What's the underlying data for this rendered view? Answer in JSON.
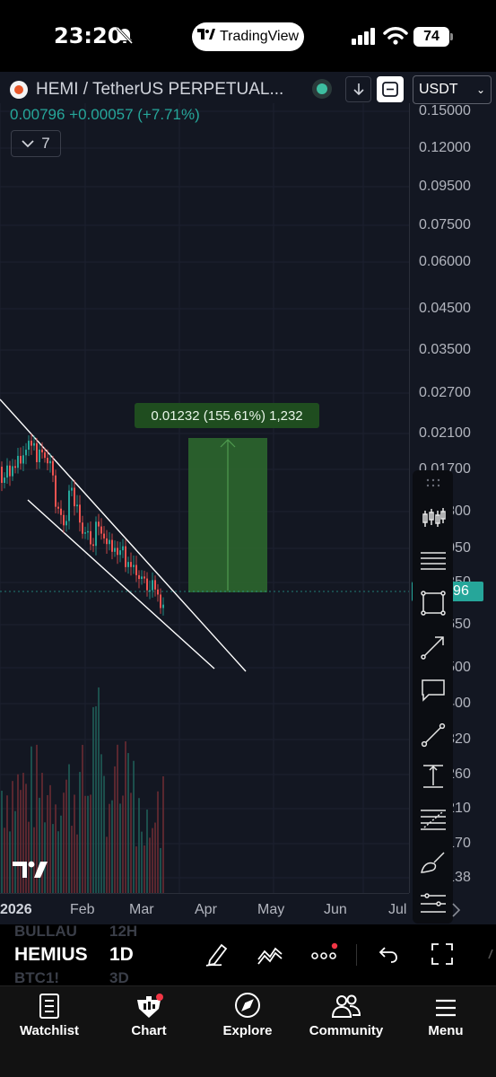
{
  "status_bar": {
    "time": "23:20",
    "app_pill": "TradingView",
    "battery": "74"
  },
  "chart_header": {
    "symbol_title": "HEMI / TetherUS PERPETUAL...",
    "price_line": "0.00796 +0.00057 (+7.71%)",
    "indicator_count": "7",
    "currency": "USDT"
  },
  "price_axis": {
    "ticks": [
      "0.15000",
      "0.12000",
      "0.09500",
      "0.07500",
      "0.06000",
      "0.04500",
      "0.03500",
      "0.02700",
      "0.02100",
      "0.01700",
      "0.01300",
      "0.01050",
      "0.00850",
      "0.00650",
      "0.00500",
      "0.00400",
      "0.00320",
      "0.00260",
      "0.00210",
      "0.00170",
      "0.00138"
    ],
    "current_price": "0.00796"
  },
  "time_axis": {
    "ticks": [
      "2026",
      "Feb",
      "Mar",
      "Apr",
      "May",
      "Jun",
      "Jul"
    ]
  },
  "measure_label": "0.01232 (155.61%) 1,232",
  "bottom_bar": {
    "ghost_symbols": [
      "BULLAU",
      "",
      "BTC1!"
    ],
    "ghost_intervals": [
      "12H",
      "",
      "3D"
    ],
    "symbol": "HEMIUS",
    "interval": "1D"
  },
  "tabs": [
    {
      "label": "Watchlist",
      "icon": "watchlist-icon"
    },
    {
      "label": "Chart",
      "icon": "chart-icon"
    },
    {
      "label": "Explore",
      "icon": "compass-icon"
    },
    {
      "label": "Community",
      "icon": "community-icon"
    },
    {
      "label": "Menu",
      "icon": "menu-icon"
    }
  ],
  "colors": {
    "up": "#26a69a",
    "down": "#ef5350",
    "background": "#131722",
    "measure_fill": "#2e6b2e"
  }
}
